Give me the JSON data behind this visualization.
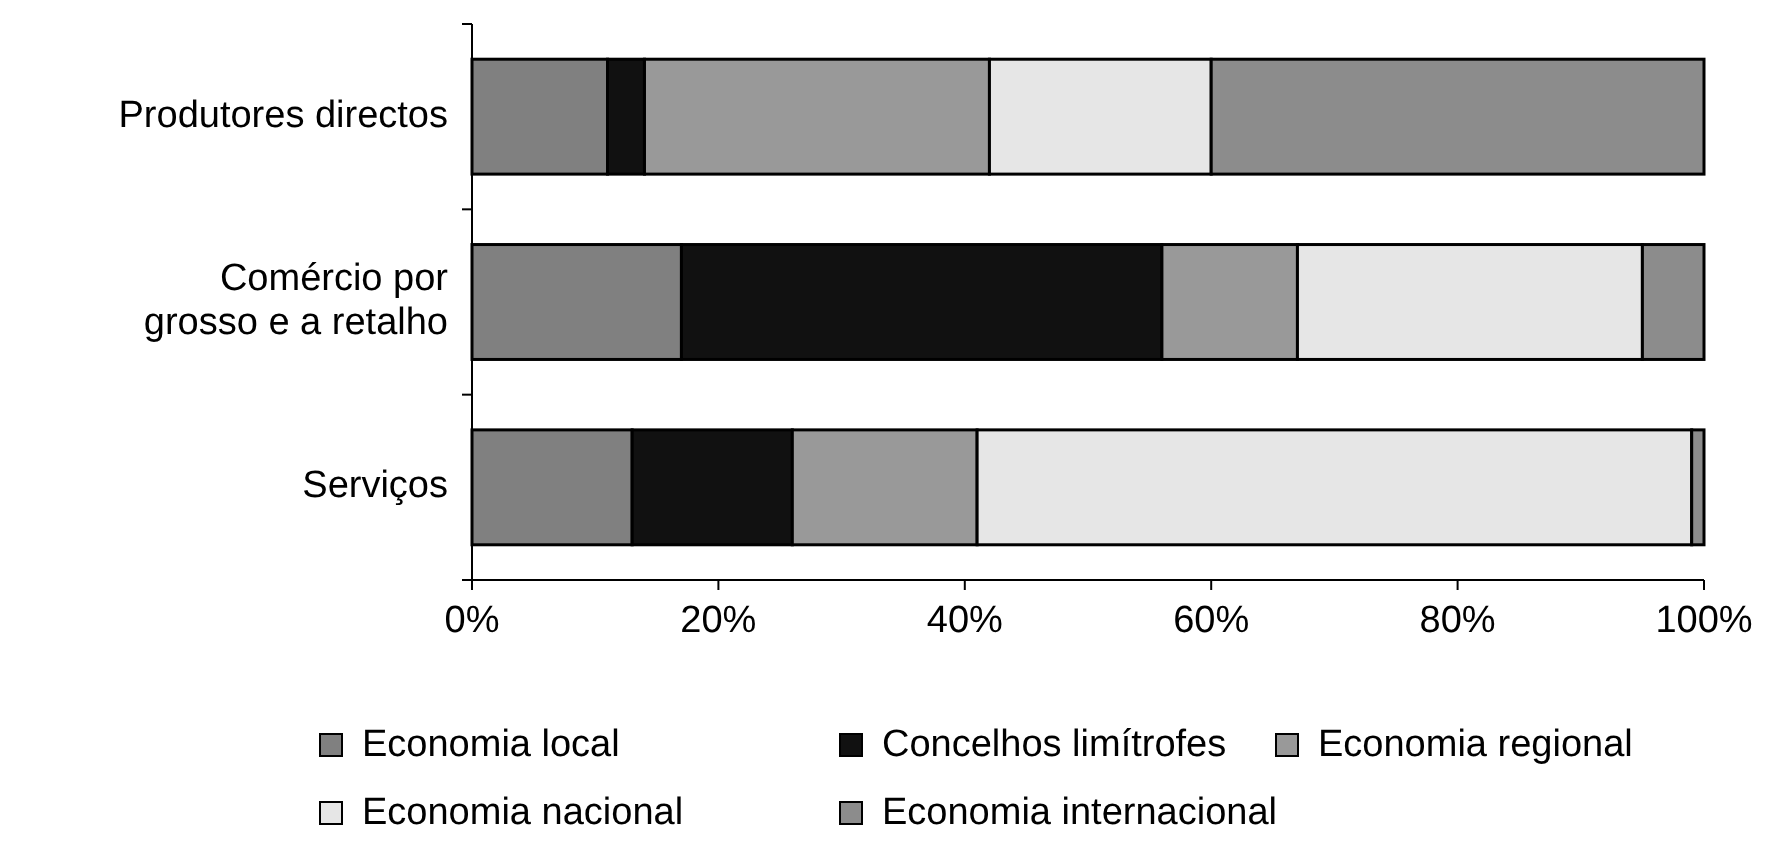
{
  "chart_data": {
    "type": "bar",
    "orientation": "horizontal",
    "stacked": true,
    "categories": [
      "Produtores directos",
      "Comércio por\ngrosso e a retalho",
      "Serviços"
    ],
    "series": [
      {
        "name": "Economia local",
        "color": "#808080",
        "values": [
          11,
          17,
          13
        ]
      },
      {
        "name": "Concelhos limítrofes",
        "color": "#111111",
        "values": [
          3,
          39,
          13
        ]
      },
      {
        "name": "Economia regional",
        "color": "#999999",
        "values": [
          28,
          11,
          15
        ]
      },
      {
        "name": "Economia nacional",
        "color": "#e6e6e6",
        "values": [
          18,
          28,
          58
        ]
      },
      {
        "name": "Economia internacional",
        "color": "#8c8c8c",
        "values": [
          40,
          5,
          1
        ]
      }
    ],
    "xlim": [
      0,
      100
    ],
    "xticks": [
      {
        "value": 0,
        "label": "0%"
      },
      {
        "value": 20,
        "label": "20%"
      },
      {
        "value": 40,
        "label": "40%"
      },
      {
        "value": 60,
        "label": "60%"
      },
      {
        "value": 80,
        "label": "80%"
      },
      {
        "value": 100,
        "label": "100%"
      }
    ],
    "grid": false,
    "legend": "bottom"
  }
}
